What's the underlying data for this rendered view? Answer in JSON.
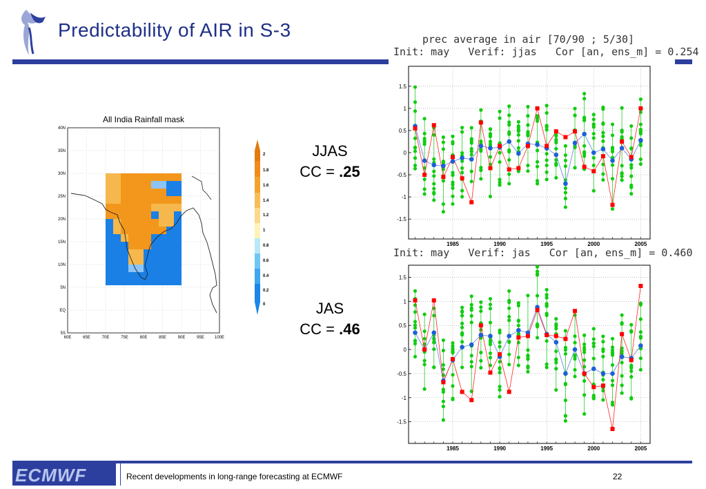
{
  "slide": {
    "title": "Predictability of AIR in S-3",
    "footer_text": "Recent developments in long-range forecasting at ECMWF",
    "page_number": "22",
    "logo_text": "ECMWF"
  },
  "map": {
    "title": "All India Rainfall mask",
    "lat_labels": [
      "40N",
      "35N",
      "30N",
      "25N",
      "20N",
      "15N",
      "10N",
      "5N",
      "EQ",
      "5S"
    ],
    "lon_labels": [
      "60E",
      "65E",
      "70E",
      "75E",
      "80E",
      "85E",
      "90E",
      "95E",
      "100E"
    ],
    "legend_labels": [
      "2",
      "1.8",
      "1.6",
      "1.4",
      "1.2",
      "1",
      "0.8",
      "0.6",
      "0.4",
      "0.2",
      "0"
    ]
  },
  "cc_labels": [
    {
      "name": "JJAS",
      "prefix": "CC = ",
      "value": ".25"
    },
    {
      "name": "JAS",
      "prefix": "CC = ",
      "value": ".46"
    }
  ],
  "chart_data": [
    {
      "type": "line",
      "title": "prec average in air [70/90 ; 5/30]",
      "subtitle": "Init: may   Verif: jjas   Cor [an, ens_m] = 0.254",
      "x": [
        1981,
        1982,
        1983,
        1984,
        1985,
        1986,
        1987,
        1988,
        1989,
        1990,
        1991,
        1992,
        1993,
        1994,
        1995,
        1996,
        1997,
        1998,
        1999,
        2000,
        2001,
        2002,
        2003,
        2004,
        2005
      ],
      "xticks": [
        "1985",
        "1990",
        "1995",
        "2000",
        "2005"
      ],
      "xlim": [
        1980.3,
        2006
      ],
      "ylim": [
        -1.95,
        1.95
      ],
      "yticks": [
        "1.5",
        "1",
        "0.5",
        "0",
        "-0.5",
        "-1",
        "-1.5"
      ],
      "grid": true,
      "series": [
        {
          "color": "#ff0000",
          "values": [
            0.55,
            -0.5,
            0.62,
            -0.55,
            -0.1,
            -0.58,
            -1.12,
            0.68,
            -0.35,
            0.15,
            -0.38,
            -0.35,
            0.15,
            1.0,
            0.15,
            0.48,
            0.35,
            0.48,
            -0.32,
            -0.42,
            -0.08,
            -1.18,
            0.25,
            -0.1,
            1.0
          ]
        },
        {
          "color": "#1e5fd6",
          "values": [
            0.6,
            -0.18,
            -0.28,
            -0.3,
            -0.2,
            -0.12,
            -0.15,
            0.15,
            0.1,
            0.12,
            0.25,
            -0.02,
            0.2,
            0.18,
            0.1,
            -0.05,
            -0.7,
            0.22,
            0.42,
            0.0,
            0.08,
            -0.18,
            0.1,
            -0.15,
            0.28
          ]
        }
      ]
    },
    {
      "type": "line",
      "subtitle": "Init: may   Verif: jas   Cor [an, ens_m] = 0.460",
      "x": [
        1981,
        1982,
        1983,
        1984,
        1985,
        1986,
        1987,
        1988,
        1989,
        1990,
        1991,
        1992,
        1993,
        1994,
        1995,
        1996,
        1997,
        1998,
        1999,
        2000,
        2001,
        2002,
        2003,
        2004,
        2005
      ],
      "xticks": [
        "1985",
        "1990",
        "1995",
        "2000",
        "2005"
      ],
      "xlim": [
        1980.3,
        2006
      ],
      "ylim": [
        -1.95,
        1.75
      ],
      "yticks": [
        "1.5",
        "1",
        "0.5",
        "0",
        "-0.5",
        "-1",
        "-1.5"
      ],
      "grid": true,
      "series": [
        {
          "color": "#ff0000",
          "values": [
            1.02,
            0.0,
            1.02,
            -0.68,
            -0.2,
            -0.88,
            -1.05,
            0.5,
            -0.48,
            -0.1,
            -0.88,
            0.25,
            0.28,
            0.82,
            0.3,
            0.28,
            0.22,
            0.8,
            -0.5,
            -0.78,
            -0.75,
            -1.65,
            0.32,
            -0.22,
            1.32
          ]
        },
        {
          "color": "#1e5fd6",
          "values": [
            0.35,
            0.0,
            0.35,
            -0.65,
            -0.22,
            0.05,
            0.1,
            0.3,
            0.28,
            -0.15,
            0.28,
            0.4,
            0.35,
            0.88,
            0.32,
            0.15,
            -0.5,
            0.0,
            -0.5,
            -0.4,
            -0.5,
            -0.5,
            -0.15,
            -0.18,
            0.08
          ]
        }
      ]
    }
  ]
}
